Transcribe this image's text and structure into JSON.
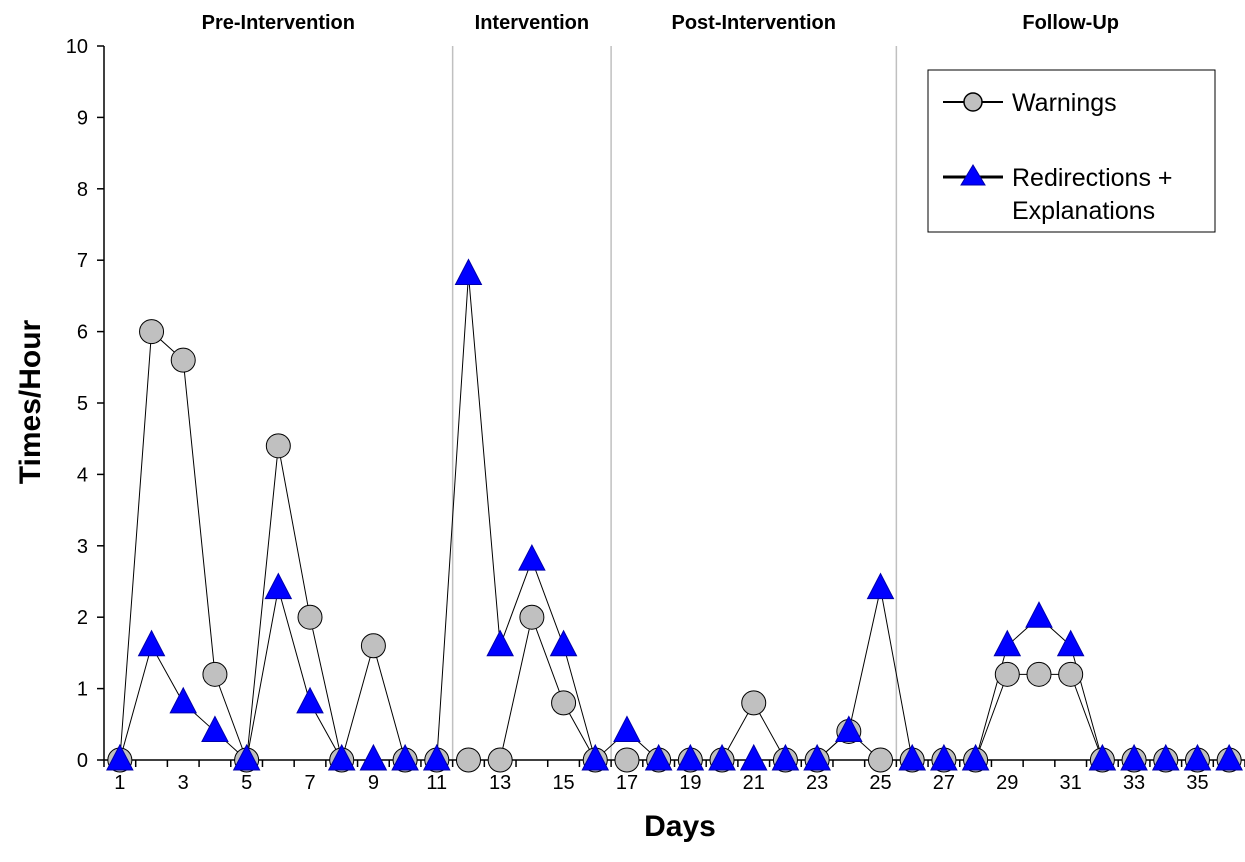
{
  "chart_data": {
    "type": "line",
    "xlabel": "Days",
    "ylabel": "Times/Hour",
    "ylim": [
      0,
      10
    ],
    "xlim": [
      0.5,
      36.5
    ],
    "y_ticks": [
      0,
      1,
      2,
      3,
      4,
      5,
      6,
      7,
      8,
      9,
      10
    ],
    "x_tick_labels": [
      1,
      3,
      5,
      7,
      9,
      11,
      13,
      15,
      17,
      19,
      21,
      23,
      25,
      27,
      29,
      31,
      33,
      35
    ],
    "grid": false,
    "legend_position": "top-right",
    "x": [
      1,
      2,
      3,
      4,
      5,
      6,
      7,
      8,
      9,
      10,
      11,
      12,
      13,
      14,
      15,
      16,
      17,
      18,
      19,
      20,
      21,
      22,
      23,
      24,
      25,
      26,
      27,
      28,
      29,
      30,
      31,
      32,
      33,
      34,
      35,
      36
    ],
    "phases": [
      {
        "label": "Pre-Intervention",
        "start": 1,
        "end": 11
      },
      {
        "label": "Intervention",
        "start": 12,
        "end": 16
      },
      {
        "label": "Post-Intervention",
        "start": 17,
        "end": 25
      },
      {
        "label": "Follow-Up",
        "start": 26,
        "end": 36
      }
    ],
    "phase_dividers": [
      11.5,
      16.5,
      25.5
    ],
    "series": [
      {
        "name": "Warnings",
        "marker": "circle",
        "color": "#c0c0c0",
        "values": [
          0,
          6,
          5.6,
          1.2,
          0,
          4.4,
          2,
          0,
          1.6,
          0,
          0,
          0,
          0,
          2,
          0.8,
          0,
          0,
          0,
          0,
          0,
          0.8,
          0,
          0,
          0.4,
          0,
          0,
          0,
          0,
          1.2,
          1.2,
          1.2,
          0,
          0,
          0,
          0,
          0
        ]
      },
      {
        "name": "Redirections + Explanations",
        "legend_lines": [
          "Redirections +",
          "Explanations"
        ],
        "marker": "triangle",
        "color": "#0000ff",
        "values": [
          0,
          1.6,
          0.8,
          0.4,
          0,
          2.4,
          0.8,
          0,
          0,
          0,
          0,
          6.8,
          1.6,
          2.8,
          1.6,
          0,
          0.4,
          0,
          0,
          0,
          0,
          0,
          0,
          0.4,
          2.4,
          0,
          0,
          0,
          1.6,
          2,
          1.6,
          0,
          0,
          0,
          0,
          0
        ]
      }
    ]
  }
}
